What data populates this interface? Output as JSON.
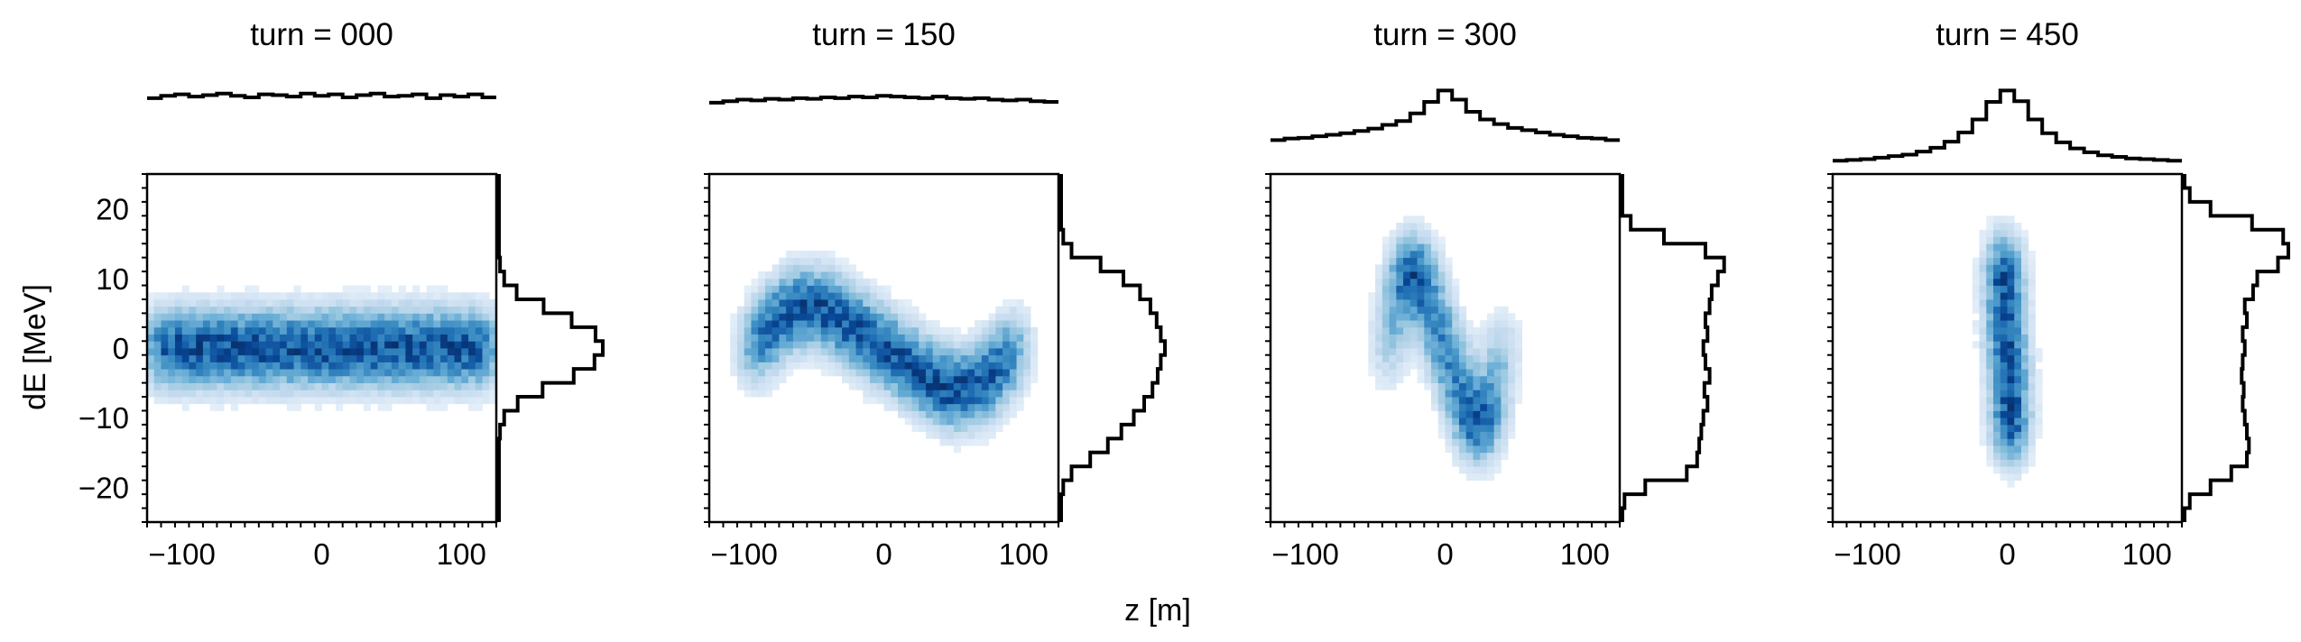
{
  "chart_data": [
    {
      "type": "heatmap",
      "title": "turn = 000",
      "turn": 0,
      "xlabel": "z [m]",
      "ylabel": "dE [MeV]",
      "xlim": [
        -125,
        125
      ],
      "ylim": [
        -25,
        25
      ],
      "xticks": [
        -100,
        0,
        100
      ],
      "yticks": [
        -20,
        -10,
        0,
        10,
        20
      ],
      "colormap": "Blues",
      "distribution": {
        "phase_space_shape": "band",
        "rotation_deg": 0,
        "z_sigma_m": 120,
        "dE_sigma_MeV": 3.5
      },
      "top_histogram": {
        "x": [
          -120,
          -110,
          -100,
          -90,
          -80,
          -70,
          -60,
          -50,
          -40,
          -30,
          -20,
          -10,
          0,
          10,
          20,
          30,
          40,
          50,
          60,
          70,
          80,
          90,
          100,
          110,
          120
        ],
        "values": [
          0.9,
          0.93,
          0.95,
          0.92,
          0.94,
          0.96,
          0.93,
          0.91,
          0.95,
          0.94,
          0.92,
          0.96,
          0.93,
          0.95,
          0.91,
          0.94,
          0.96,
          0.92,
          0.93,
          0.95,
          0.9,
          0.94,
          0.92,
          0.95,
          0.91
        ]
      },
      "right_histogram": {
        "y": [
          -24,
          -22,
          -20,
          -18,
          -16,
          -14,
          -12,
          -10,
          -8,
          -6,
          -4,
          -2,
          0,
          2,
          4,
          6,
          8,
          10,
          12,
          14,
          16,
          18,
          20,
          22,
          24
        ],
        "values": [
          0,
          0,
          0,
          0,
          0,
          0,
          0.01,
          0.05,
          0.18,
          0.42,
          0.72,
          0.92,
          1.0,
          0.93,
          0.7,
          0.43,
          0.17,
          0.05,
          0.01,
          0,
          0,
          0,
          0,
          0,
          0
        ]
      }
    },
    {
      "type": "heatmap",
      "title": "turn = 150",
      "turn": 150,
      "xlabel": "z [m]",
      "ylabel": "dE [MeV]",
      "xlim": [
        -125,
        125
      ],
      "ylim": [
        -25,
        25
      ],
      "xticks": [
        -100,
        0,
        100
      ],
      "yticks": [
        -20,
        -10,
        0,
        10,
        20
      ],
      "colormap": "Blues",
      "distribution": {
        "phase_space_shape": "S-curve",
        "rotation_deg": 38,
        "z_sigma_m": 120,
        "dE_sigma_MeV": 3.5
      },
      "top_histogram": {
        "x": [
          -120,
          -110,
          -100,
          -90,
          -80,
          -70,
          -60,
          -50,
          -40,
          -30,
          -20,
          -10,
          0,
          10,
          20,
          30,
          40,
          50,
          60,
          70,
          80,
          90,
          100,
          110,
          120
        ],
        "values": [
          0.84,
          0.86,
          0.88,
          0.87,
          0.89,
          0.88,
          0.9,
          0.89,
          0.91,
          0.9,
          0.92,
          0.91,
          0.93,
          0.92,
          0.91,
          0.9,
          0.92,
          0.9,
          0.89,
          0.9,
          0.88,
          0.87,
          0.88,
          0.86,
          0.85
        ]
      },
      "right_histogram": {
        "y": [
          -24,
          -22,
          -20,
          -18,
          -16,
          -14,
          -12,
          -10,
          -8,
          -6,
          -4,
          -2,
          0,
          2,
          4,
          6,
          8,
          10,
          12,
          14,
          16,
          18,
          20,
          22,
          24
        ],
        "values": [
          0,
          0,
          0.02,
          0.1,
          0.28,
          0.45,
          0.58,
          0.7,
          0.8,
          0.88,
          0.93,
          0.96,
          1.0,
          0.96,
          0.92,
          0.86,
          0.76,
          0.6,
          0.38,
          0.1,
          0.02,
          0,
          0,
          0,
          0
        ]
      }
    },
    {
      "type": "heatmap",
      "title": "turn = 300",
      "turn": 300,
      "xlabel": "z [m]",
      "ylabel": "dE [MeV]",
      "xlim": [
        -125,
        125
      ],
      "ylim": [
        -25,
        25
      ],
      "xticks": [
        -100,
        0,
        100
      ],
      "yticks": [
        -20,
        -10,
        0,
        10,
        20
      ],
      "colormap": "Blues",
      "distribution": {
        "phase_space_shape": "S-curve",
        "rotation_deg": 70,
        "z_sigma_m": 120,
        "dE_sigma_MeV": 3.5
      },
      "top_histogram": {
        "x": [
          -120,
          -110,
          -100,
          -90,
          -80,
          -70,
          -60,
          -50,
          -40,
          -30,
          -20,
          -10,
          0,
          10,
          20,
          30,
          40,
          50,
          60,
          70,
          80,
          90,
          100,
          110,
          120
        ],
        "values": [
          0.35,
          0.37,
          0.38,
          0.4,
          0.42,
          0.44,
          0.47,
          0.5,
          0.55,
          0.6,
          0.7,
          0.85,
          1.0,
          0.88,
          0.72,
          0.62,
          0.56,
          0.51,
          0.48,
          0.45,
          0.42,
          0.4,
          0.38,
          0.37,
          0.35
        ]
      },
      "right_histogram": {
        "y": [
          -24,
          -22,
          -20,
          -18,
          -16,
          -14,
          -12,
          -10,
          -8,
          -6,
          -4,
          -2,
          0,
          2,
          4,
          6,
          8,
          10,
          12,
          14,
          16,
          18,
          20,
          22,
          24
        ],
        "values": [
          0,
          0.02,
          0.22,
          0.62,
          0.72,
          0.74,
          0.76,
          0.78,
          0.82,
          0.79,
          0.84,
          0.8,
          0.78,
          0.82,
          0.8,
          0.84,
          0.86,
          0.92,
          0.98,
          0.8,
          0.4,
          0.08,
          0,
          0,
          0
        ]
      }
    },
    {
      "type": "heatmap",
      "title": "turn = 450",
      "turn": 450,
      "xlabel": "z [m]",
      "ylabel": "dE [MeV]",
      "xlim": [
        -125,
        125
      ],
      "ylim": [
        -25,
        25
      ],
      "xticks": [
        -100,
        0,
        100
      ],
      "yticks": [
        -20,
        -10,
        0,
        10,
        20
      ],
      "colormap": "Blues",
      "distribution": {
        "phase_space_shape": "S-curve",
        "rotation_deg": 88,
        "z_sigma_m": 120,
        "dE_sigma_MeV": 3.5
      },
      "top_histogram": {
        "x": [
          -120,
          -110,
          -100,
          -90,
          -80,
          -70,
          -60,
          -50,
          -40,
          -30,
          -20,
          -10,
          0,
          10,
          20,
          30,
          40,
          50,
          60,
          70,
          80,
          90,
          100,
          110,
          120
        ],
        "values": [
          0.08,
          0.09,
          0.1,
          0.12,
          0.14,
          0.16,
          0.2,
          0.25,
          0.33,
          0.45,
          0.62,
          0.85,
          1.0,
          0.86,
          0.62,
          0.44,
          0.32,
          0.24,
          0.19,
          0.15,
          0.13,
          0.11,
          0.1,
          0.09,
          0.08
        ]
      },
      "right_histogram": {
        "y": [
          -24,
          -22,
          -20,
          -18,
          -16,
          -14,
          -12,
          -10,
          -8,
          -6,
          -4,
          -2,
          0,
          2,
          4,
          6,
          8,
          10,
          12,
          14,
          16,
          18,
          20,
          22,
          24
        ],
        "values": [
          0,
          0.05,
          0.25,
          0.45,
          0.6,
          0.62,
          0.6,
          0.58,
          0.56,
          0.57,
          0.55,
          0.56,
          0.58,
          0.56,
          0.6,
          0.58,
          0.66,
          0.7,
          0.9,
          1.0,
          0.95,
          0.65,
          0.25,
          0.05,
          0
        ]
      }
    }
  ],
  "shared_xlabel": "z [m]",
  "shared_ylabel": "dE [MeV]"
}
